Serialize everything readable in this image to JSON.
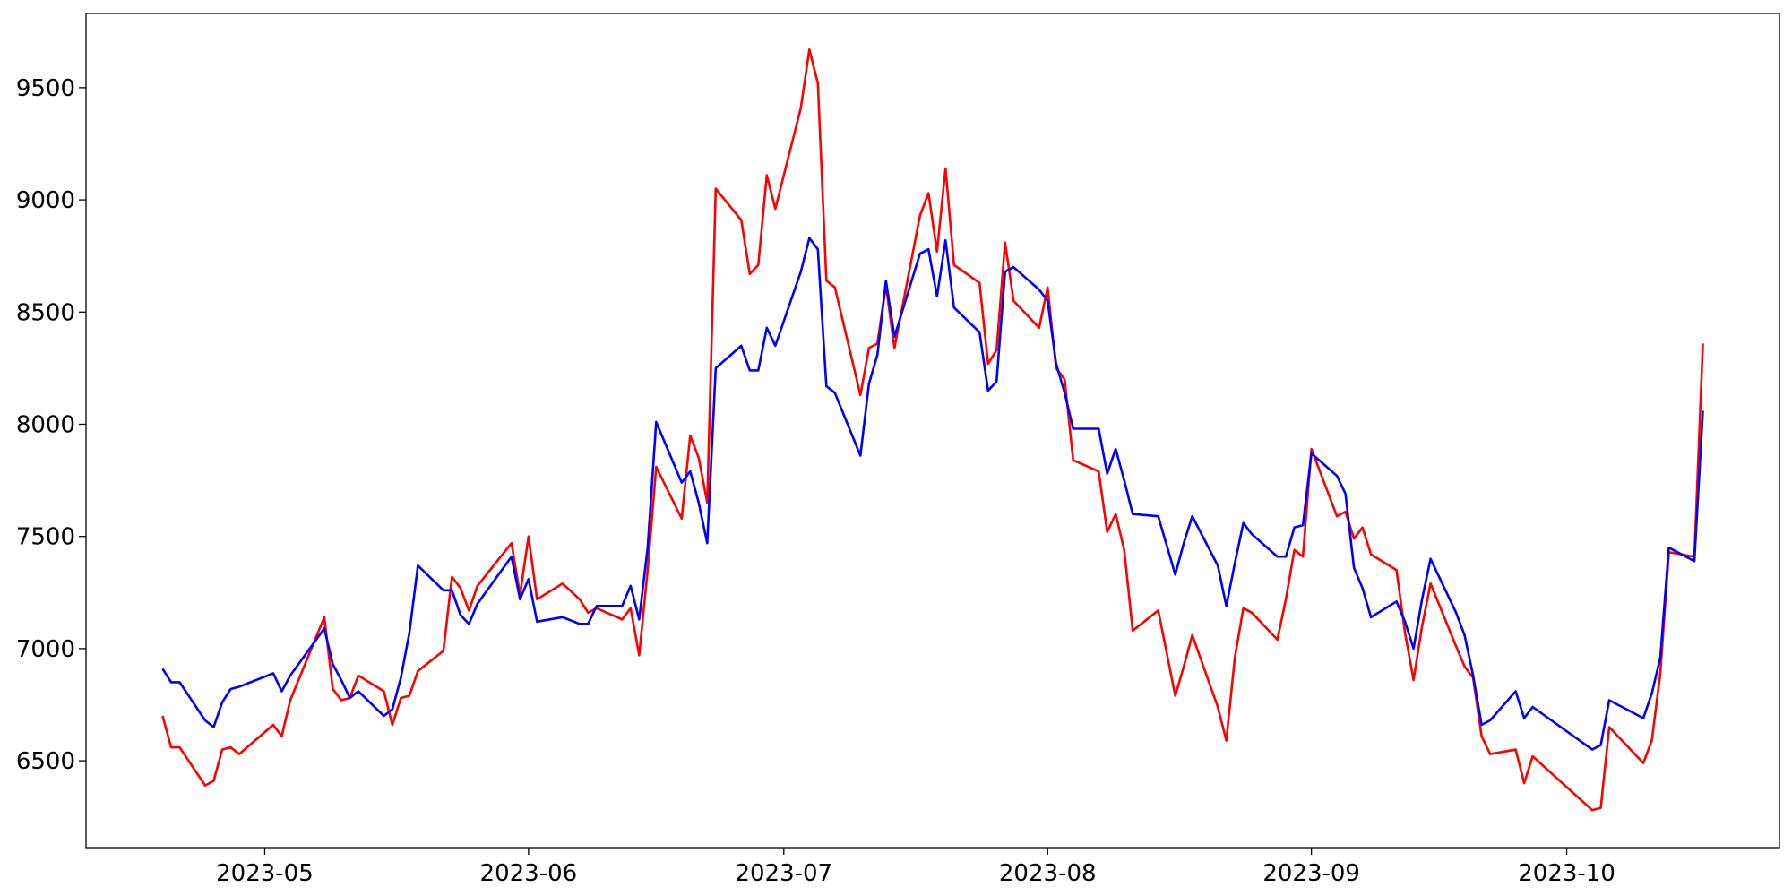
{
  "chart_data": {
    "type": "line",
    "x": [
      "2023-04-19",
      "2023-04-20",
      "2023-04-21",
      "2023-04-24",
      "2023-04-25",
      "2023-04-26",
      "2023-04-27",
      "2023-04-28",
      "2023-05-02",
      "2023-05-03",
      "2023-05-04",
      "2023-05-08",
      "2023-05-09",
      "2023-05-10",
      "2023-05-11",
      "2023-05-12",
      "2023-05-15",
      "2023-05-16",
      "2023-05-17",
      "2023-05-18",
      "2023-05-19",
      "2023-05-22",
      "2023-05-23",
      "2023-05-24",
      "2023-05-25",
      "2023-05-26",
      "2023-05-30",
      "2023-05-31",
      "2023-06-01",
      "2023-06-02",
      "2023-06-05",
      "2023-06-07",
      "2023-06-08",
      "2023-06-09",
      "2023-06-12",
      "2023-06-13",
      "2023-06-14",
      "2023-06-15",
      "2023-06-16",
      "2023-06-19",
      "2023-06-20",
      "2023-06-21",
      "2023-06-22",
      "2023-06-23",
      "2023-06-26",
      "2023-06-27",
      "2023-06-28",
      "2023-06-29",
      "2023-06-30",
      "2023-07-03",
      "2023-07-04",
      "2023-07-05",
      "2023-07-06",
      "2023-07-07",
      "2023-07-10",
      "2023-07-11",
      "2023-07-12",
      "2023-07-13",
      "2023-07-14",
      "2023-07-17",
      "2023-07-18",
      "2023-07-19",
      "2023-07-20",
      "2023-07-21",
      "2023-07-24",
      "2023-07-25",
      "2023-07-26",
      "2023-07-27",
      "2023-07-28",
      "2023-07-31",
      "2023-08-01",
      "2023-08-02",
      "2023-08-03",
      "2023-08-04",
      "2023-08-07",
      "2023-08-08",
      "2023-08-09",
      "2023-08-10",
      "2023-08-11",
      "2023-08-14",
      "2023-08-16",
      "2023-08-17",
      "2023-08-18",
      "2023-08-21",
      "2023-08-22",
      "2023-08-23",
      "2023-08-24",
      "2023-08-25",
      "2023-08-28",
      "2023-08-29",
      "2023-08-30",
      "2023-08-31",
      "2023-09-01",
      "2023-09-04",
      "2023-09-05",
      "2023-09-06",
      "2023-09-07",
      "2023-09-08",
      "2023-09-11",
      "2023-09-12",
      "2023-09-13",
      "2023-09-14",
      "2023-09-15",
      "2023-09-18",
      "2023-09-19",
      "2023-09-20",
      "2023-09-21",
      "2023-09-22",
      "2023-09-25",
      "2023-09-26",
      "2023-09-27",
      "2023-10-04",
      "2023-10-05",
      "2023-10-06",
      "2023-10-10",
      "2023-10-11",
      "2023-10-12",
      "2023-10-13",
      "2023-10-16",
      "2023-10-17"
    ],
    "series": [
      {
        "color": "#ff0000",
        "values": [
          6700,
          6560,
          6560,
          6390,
          6410,
          6550,
          6560,
          6530,
          6660,
          6610,
          6770,
          7140,
          6820,
          6770,
          6780,
          6880,
          6810,
          6660,
          6780,
          6790,
          6900,
          6990,
          7320,
          7270,
          7170,
          7280,
          7470,
          7240,
          7500,
          7220,
          7290,
          7220,
          7160,
          7180,
          7130,
          7180,
          6970,
          7350,
          7810,
          7580,
          7950,
          7850,
          7650,
          9050,
          8910,
          8670,
          8710,
          9110,
          8960,
          9410,
          9670,
          9520,
          8640,
          8610,
          8130,
          8340,
          8360,
          8620,
          8340,
          8930,
          9030,
          8770,
          9140,
          8710,
          8630,
          8270,
          8330,
          8810,
          8550,
          8430,
          8610,
          8250,
          8200,
          7840,
          7790,
          7520,
          7600,
          7440,
          7080,
          7170,
          6790,
          6920,
          7060,
          6740,
          6590,
          6960,
          7180,
          7160,
          7040,
          7220,
          7440,
          7410,
          7890,
          7590,
          7610,
          7490,
          7540,
          7420,
          7350,
          7070,
          6860,
          7100,
          7290,
          7010,
          6920,
          6870,
          6610,
          6530,
          6550,
          6400,
          6520,
          6280,
          6290,
          6650,
          6490,
          6590,
          6890,
          7430,
          7410,
          8360
        ]
      },
      {
        "color": "#0000ff",
        "values": [
          6910,
          6850,
          6850,
          6680,
          6650,
          6760,
          6820,
          6830,
          6890,
          6810,
          6880,
          7090,
          6930,
          6860,
          6780,
          6810,
          6700,
          6730,
          6870,
          7070,
          7370,
          7260,
          7260,
          7150,
          7110,
          7200,
          7410,
          7220,
          7310,
          7120,
          7140,
          7110,
          7110,
          7190,
          7190,
          7280,
          7130,
          7450,
          8010,
          7740,
          7790,
          7650,
          7470,
          8250,
          8350,
          8240,
          8240,
          8430,
          8350,
          8680,
          8830,
          8780,
          8170,
          8140,
          7860,
          8180,
          8310,
          8640,
          8390,
          8760,
          8780,
          8570,
          8820,
          8520,
          8410,
          8150,
          8190,
          8680,
          8700,
          8600,
          8550,
          8270,
          8140,
          7980,
          7980,
          7780,
          7890,
          7750,
          7600,
          7590,
          7330,
          7470,
          7590,
          7370,
          7190,
          7380,
          7560,
          7510,
          7410,
          7410,
          7540,
          7550,
          7870,
          7770,
          7690,
          7360,
          7270,
          7140,
          7210,
          7120,
          7000,
          7220,
          7400,
          7160,
          7060,
          6880,
          6660,
          6680,
          6810,
          6690,
          6740,
          6550,
          6570,
          6770,
          6690,
          6800,
          6960,
          7450,
          7390,
          8060
        ]
      }
    ],
    "xlim": [
      "2023-04-10",
      "2023-10-26"
    ],
    "xticks": [
      "2023-05",
      "2023-06",
      "2023-07",
      "2023-08",
      "2023-09",
      "2023-10"
    ],
    "ylim": [
      6113,
      9831
    ],
    "yticks": [
      6500,
      7000,
      7500,
      8000,
      8500,
      9000,
      9500
    ],
    "grid": false
  }
}
